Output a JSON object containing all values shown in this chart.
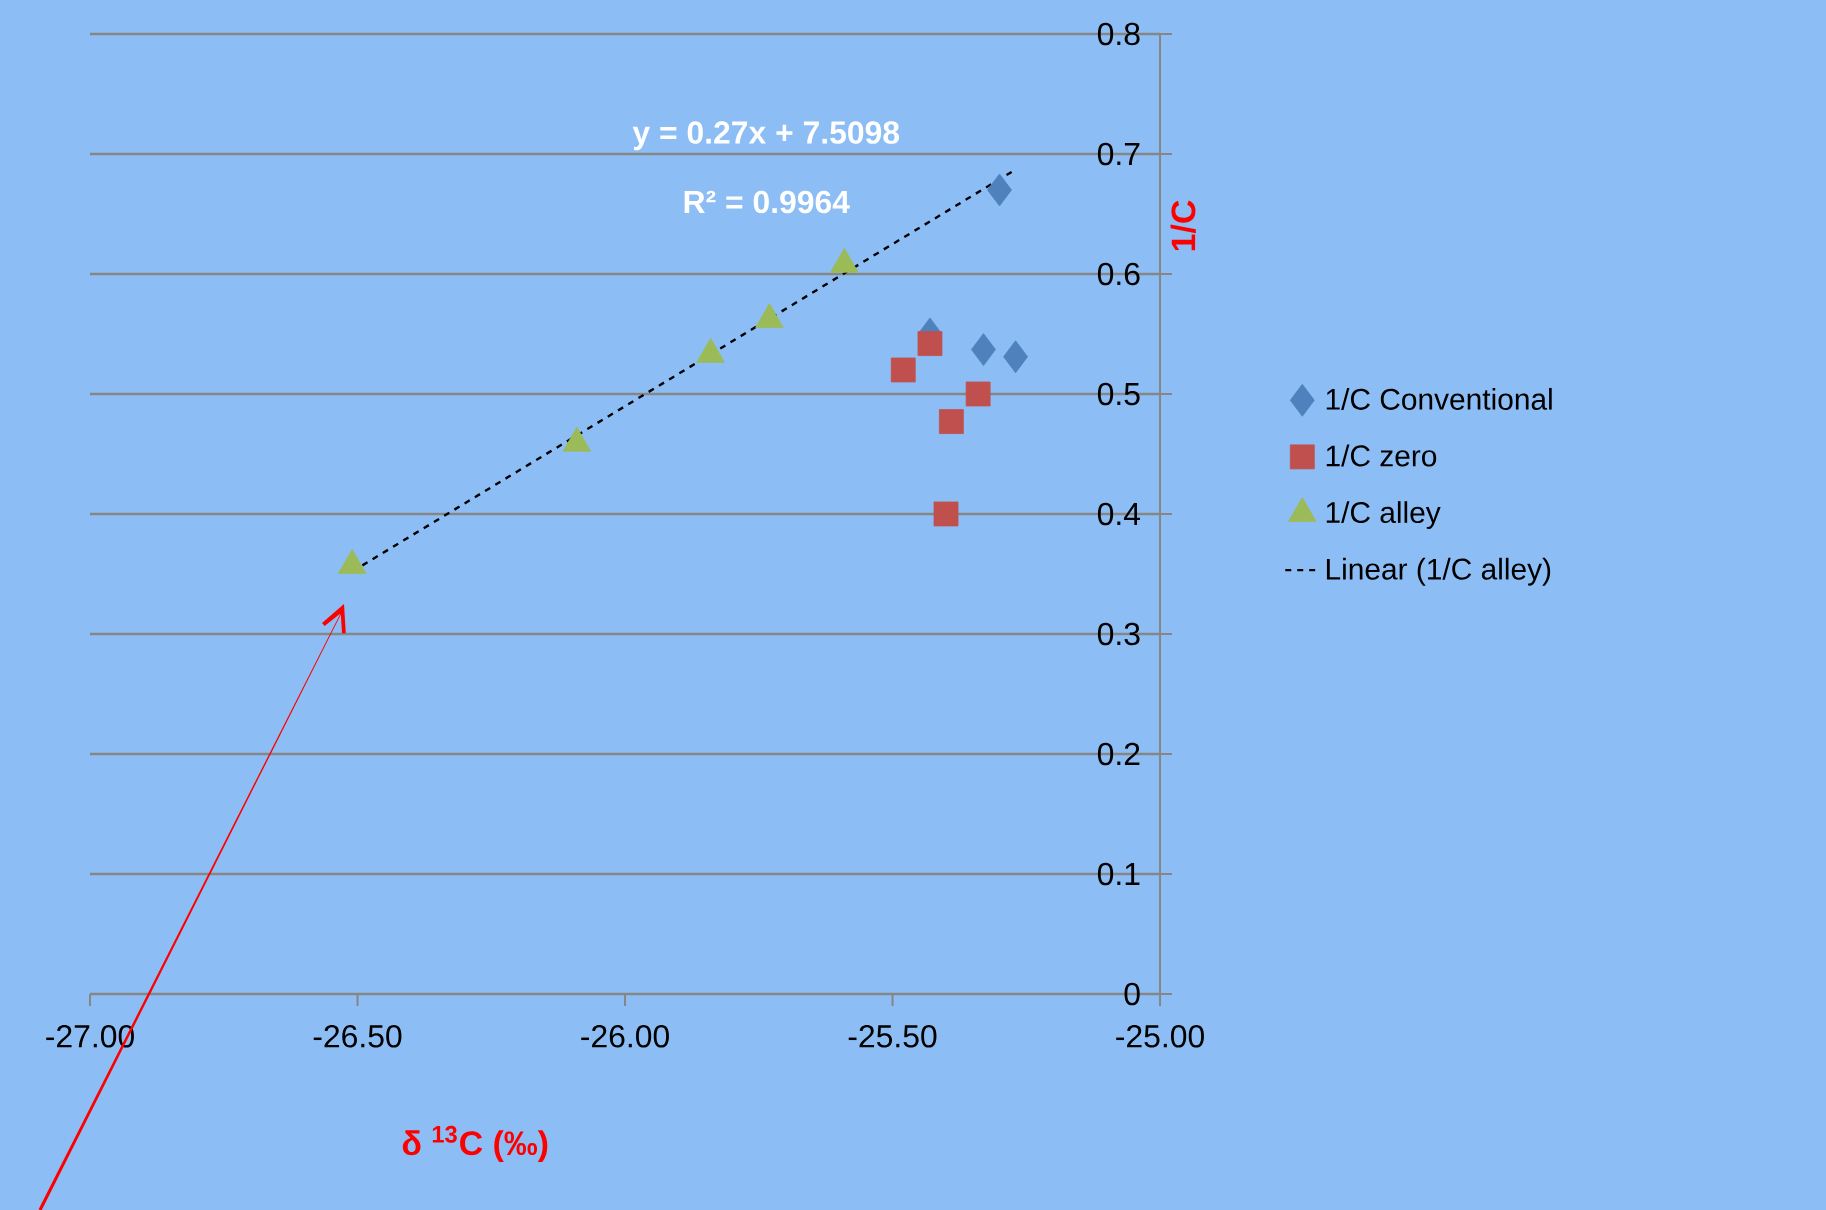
{
  "chart_data": {
    "type": "scatter",
    "xlabel": "δ $^{13}$C (‰)",
    "ylabel": "1/C",
    "xlim": [
      -27,
      -25
    ],
    "ylim": [
      0,
      0.8
    ],
    "xticks": [
      {
        "value": -27,
        "label": "-27.00"
      },
      {
        "value": -26.5,
        "label": "-26.50"
      },
      {
        "value": -26,
        "label": "-26.00"
      },
      {
        "value": -25.5,
        "label": "-25.50"
      },
      {
        "value": -25,
        "label": "-25.00"
      }
    ],
    "yticks": [
      0,
      0.1,
      0.2,
      0.3,
      0.4,
      0.5,
      0.6,
      0.7,
      0.8
    ],
    "grid": "y",
    "legend": "right",
    "series": [
      {
        "name": "1/C Conventional",
        "color": "#4f81bd",
        "marker": "diamond",
        "x": [
          -25.3,
          -25.33,
          -25.27,
          -25.43
        ],
        "values": [
          0.67,
          0.537,
          0.531,
          0.55
        ]
      },
      {
        "name": "1/C zero",
        "color": "#c0504d",
        "marker": "square",
        "x": [
          -25.48,
          -25.43,
          -25.34,
          -25.39,
          -25.4
        ],
        "values": [
          0.52,
          0.542,
          0.5,
          0.477,
          0.4
        ]
      },
      {
        "name": "1/C alley",
        "color": "#9bbb59",
        "marker": "triangle",
        "x": [
          -26.51,
          -26.09,
          -25.84,
          -25.73,
          -25.59
        ],
        "values": [
          0.357,
          0.459,
          0.533,
          0.562,
          0.608
        ]
      },
      {
        "name": "Linear (1/C alley)",
        "type": "line",
        "color": "#000000",
        "marker": "none",
        "line_style": "dashed",
        "x": [
          -26.51,
          -25.27
        ],
        "values": [
          0.352,
          0.687
        ]
      }
    ],
    "annotations": [
      "y = 0.27x + 7.5098",
      "R² = 0.9964"
    ]
  }
}
